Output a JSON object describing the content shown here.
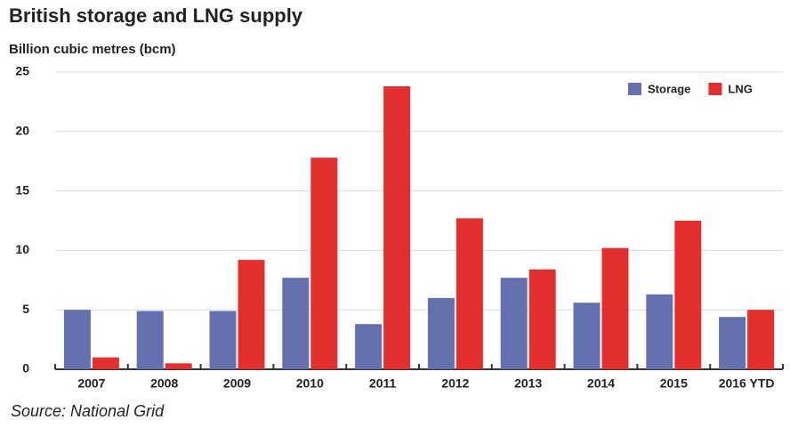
{
  "chart_data": {
    "type": "bar",
    "title": "British storage and LNG supply",
    "subtitle": "Billion cubic metres (bcm)",
    "source": "Source: National Grid",
    "categories": [
      "2007",
      "2008",
      "2009",
      "2010",
      "2011",
      "2012",
      "2013",
      "2014",
      "2015",
      "2016 YTD"
    ],
    "series": [
      {
        "name": "Storage",
        "color": "#6571ae",
        "values": [
          5.0,
          4.9,
          4.9,
          7.7,
          3.8,
          6.0,
          7.7,
          5.6,
          6.3,
          4.4
        ]
      },
      {
        "name": "LNG",
        "color": "#e3302f",
        "values": [
          1.0,
          0.5,
          9.2,
          17.8,
          23.8,
          12.7,
          8.4,
          10.2,
          12.5,
          5.0
        ]
      }
    ],
    "ylim": [
      0,
      25
    ],
    "yticks": [
      0,
      5,
      10,
      15,
      20,
      25
    ],
    "grid": true,
    "legend": "upper right"
  }
}
